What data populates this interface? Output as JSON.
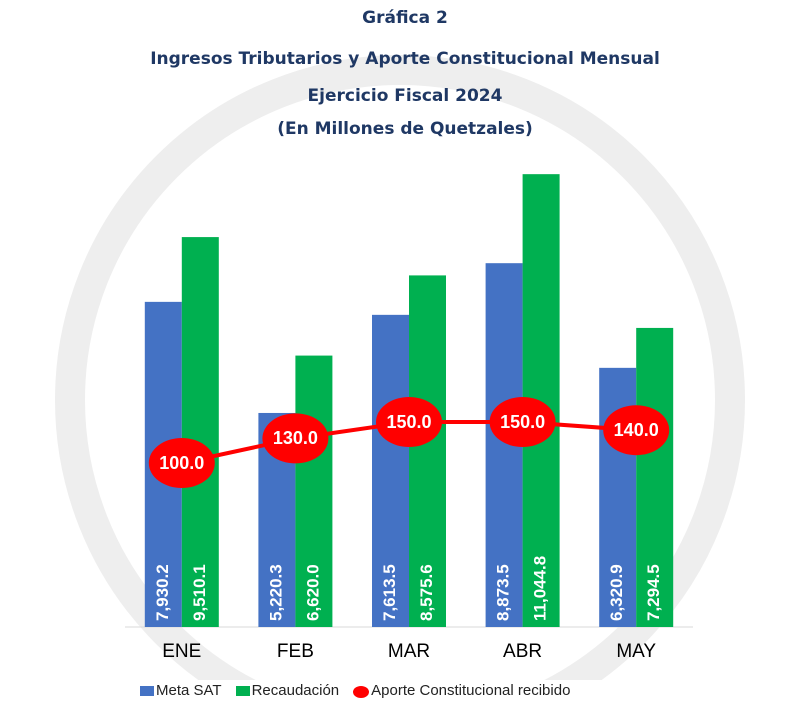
{
  "chart_data": {
    "type": "bar-line",
    "title": "Gráfica 2",
    "subtitle": [
      "Ingresos Tributarios y Aporte Constitucional Mensual",
      "Ejercicio Fiscal 2024",
      "(En Millones de Quetzales)"
    ],
    "categories": [
      "ENE",
      "FEB",
      "MAR",
      "ABR",
      "MAY"
    ],
    "series": [
      {
        "name": "Meta SAT",
        "type": "bar",
        "color": "#4472c4",
        "values": [
          7930.2,
          5220.3,
          7613.5,
          8873.5,
          6320.9
        ],
        "value_labels": [
          "7,930.2",
          "5,220.3",
          "7,613.5",
          "8,873.5",
          "6,320.9"
        ]
      },
      {
        "name": "Recaudación",
        "type": "bar",
        "color": "#00b050",
        "values": [
          9510.1,
          6620.0,
          8575.6,
          11044.8,
          7294.5
        ],
        "value_labels": [
          "9,510.1",
          "6,620.0",
          "8,575.6",
          "11,044.8",
          "7,294.5"
        ]
      },
      {
        "name": "Aporte Constitucional recibido",
        "type": "line",
        "axis": "y2",
        "color": "#ff0000",
        "values": [
          100,
          130,
          150,
          150,
          140
        ],
        "value_labels": [
          "100.0",
          "130.0",
          "150.0",
          "150.0",
          "140.0"
        ]
      }
    ],
    "ylim": [
      0,
      12000
    ],
    "y2lim": [
      -100,
      500
    ],
    "legend": "bottom"
  }
}
